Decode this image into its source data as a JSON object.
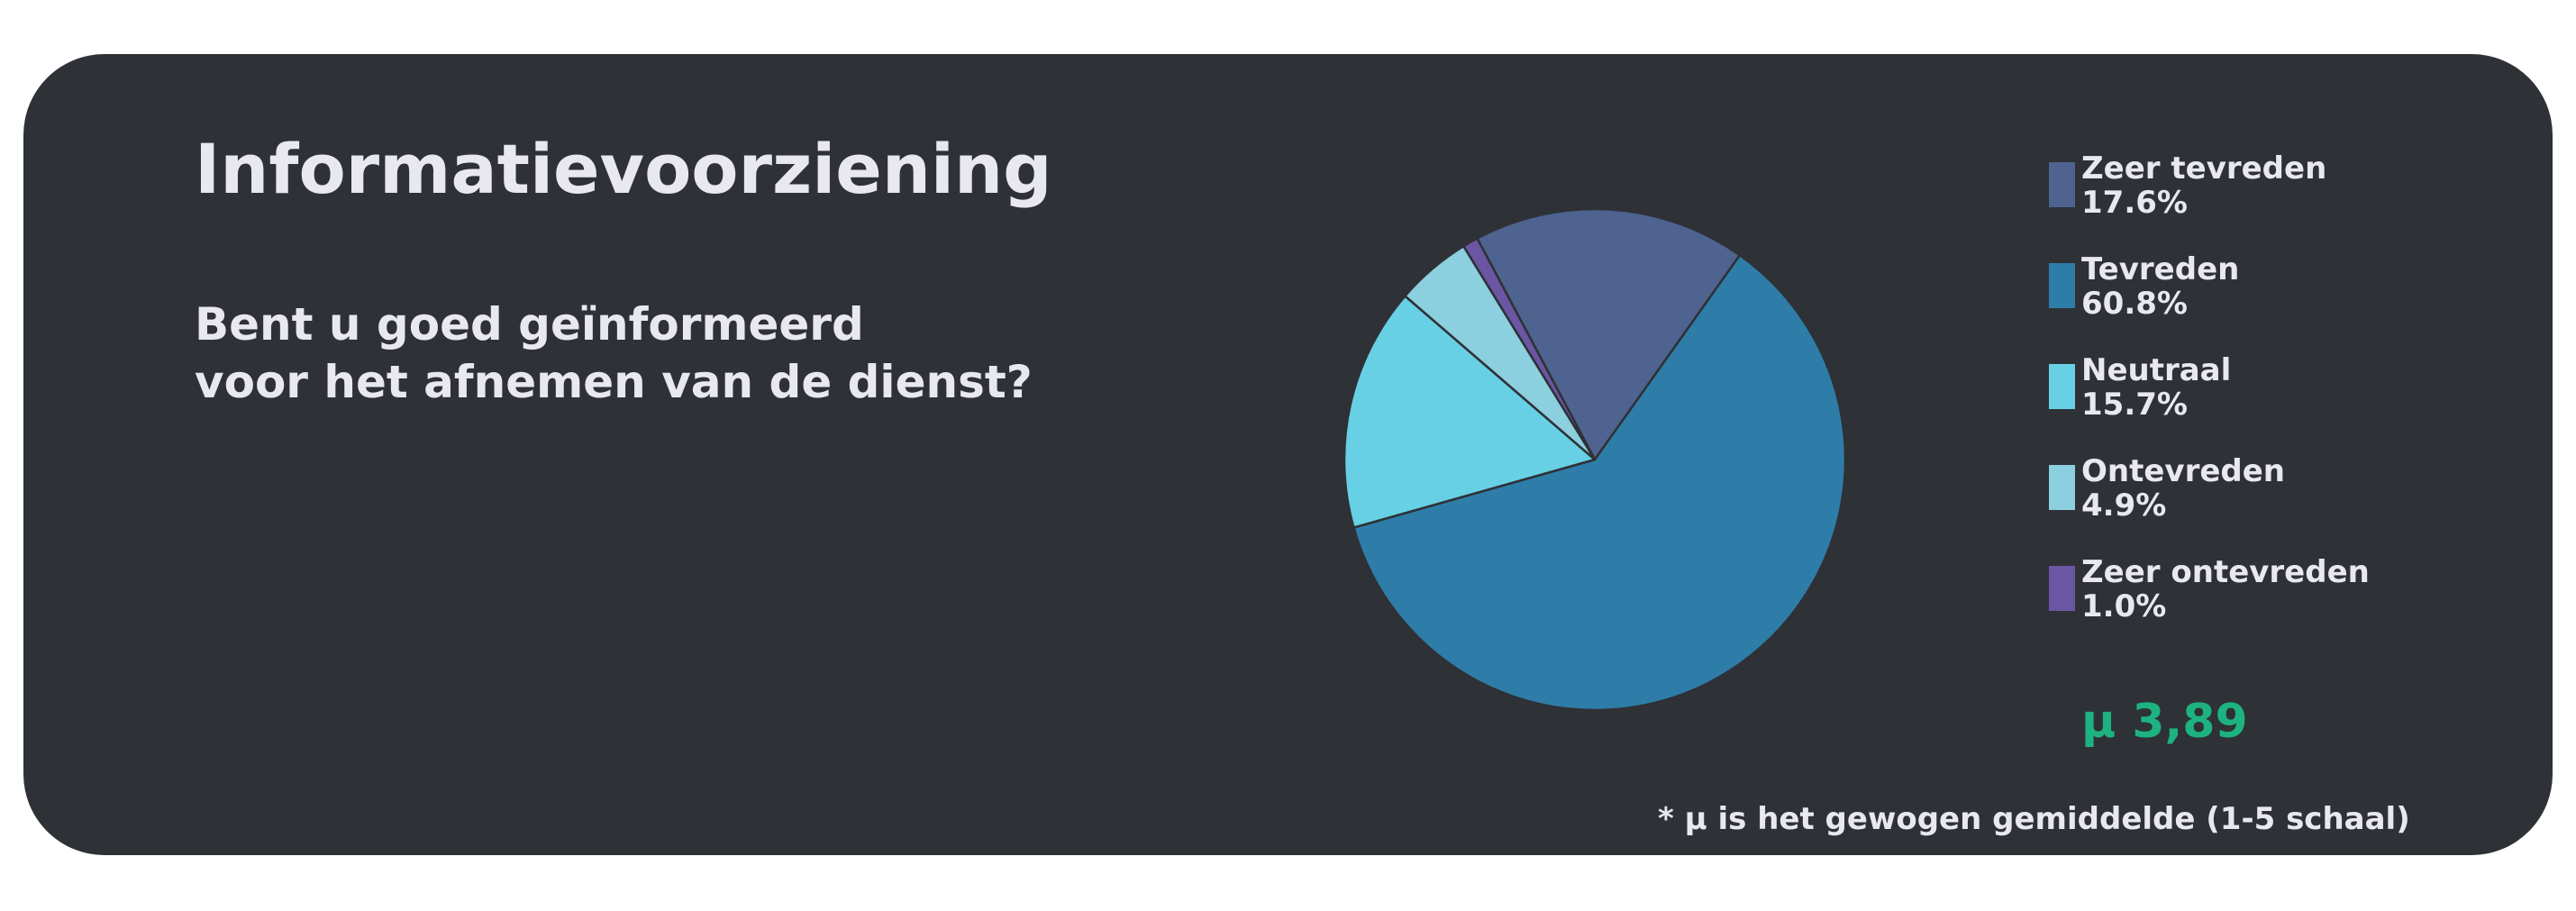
{
  "chart_data": {
    "type": "pie",
    "title": "Informatievoorziening",
    "subtitle": [
      "Bent u goed geïnformeerd",
      "voor het afnemen van de dienst?"
    ],
    "categories": [
      "Zeer tevreden",
      "Tevreden",
      "Neutraal",
      "Ontevreden",
      "Zeer ontevreden"
    ],
    "values": [
      17.6,
      60.8,
      15.7,
      4.9,
      1.0
    ],
    "value_labels": [
      "17.6%",
      "60.8%",
      "15.7%",
      "4.9%",
      "1.0%"
    ],
    "colors": [
      "#4e638f",
      "#2e7da8",
      "#67d0e4",
      "#8ccfdf",
      "#6a56a3"
    ],
    "start_angle_deg": 118,
    "direction": "clockwise",
    "legend_position": "right",
    "mean_label": "μ 3,89",
    "footnote": "* μ is het gewogen gemiddelde (1-5 schaal)"
  },
  "colors": {
    "background": "#ffffff",
    "card": "#2e3136",
    "text": "#e8e8ee",
    "accent": "#1db380",
    "slice_edge": "#2e3136"
  }
}
